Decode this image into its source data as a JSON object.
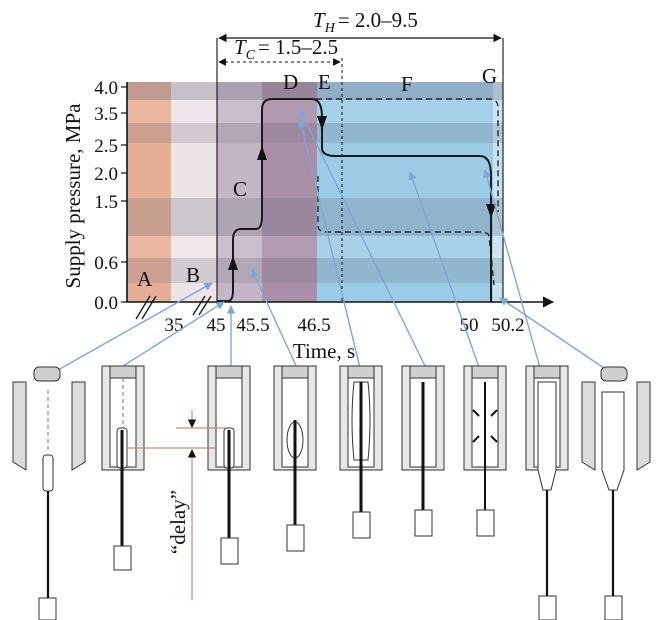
{
  "header": {
    "th_symbol": "T",
    "th_sub": "H",
    "th_value": "= 2.0–9.5",
    "tc_symbol": "T",
    "tc_sub": "C",
    "tc_value": "= 1.5–2.5"
  },
  "axes": {
    "ylabel": "Supply pressure, MPa",
    "xlabel": "Time, s",
    "yticks": [
      "0.0",
      "0.6",
      "1.5",
      "2.0",
      "2.5",
      "3.5",
      "4.0"
    ],
    "xticks": [
      "35",
      "45",
      "45.5",
      "46.5",
      "50",
      "50.2"
    ]
  },
  "phases": [
    "A",
    "B",
    "C",
    "D",
    "E",
    "F",
    "G"
  ],
  "delay_label": "“delay”",
  "colors": {
    "phase_a": "#e9b39a",
    "phase_b": "#efe7ea",
    "phase_c": "#c6b7c7",
    "phase_d": "#a98fa6",
    "phase_f": "#9fc9e4",
    "band_dark": "#8a8f9c",
    "arrow": "#7fa6d6",
    "delay_line": "#c98c7a"
  }
}
